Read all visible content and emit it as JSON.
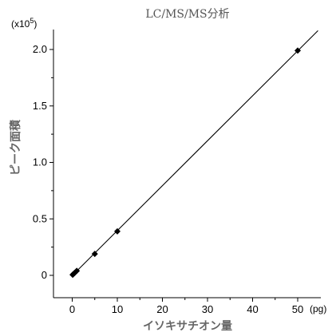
{
  "chart_data": {
    "type": "scatter",
    "title": "LC/MS/MS分析",
    "xlabel": "イソキサチオン量",
    "ylabel": "ピーク面積",
    "x_unit": "(pg)",
    "y_multiplier": "(x10",
    "y_multiplier_exp": "5",
    "y_multiplier_close": ")",
    "xlim": [
      -5,
      55
    ],
    "ylim": [
      -0.1,
      2.2
    ],
    "xticks": [
      0,
      10,
      20,
      30,
      40,
      50
    ],
    "xtick_labels": [
      "0",
      "10",
      "20",
      "30",
      "40",
      "50"
    ],
    "yticks": [
      0,
      0.5,
      1.0,
      1.5,
      2.0
    ],
    "ytick_labels": [
      "0",
      "0.5",
      "1.0",
      "1.5",
      "2.0"
    ],
    "series": [
      {
        "x": [
          0.1,
          0.2,
          0.5,
          1,
          5,
          10,
          50
        ],
        "y": [
          0.005,
          0.01,
          0.02,
          0.04,
          0.19,
          0.39,
          1.99
        ]
      }
    ],
    "fit_line": {
      "slope": 0.0398,
      "intercept": -0.002
    },
    "grid": false,
    "colors": {
      "marker": "#000000",
      "line": "#000000",
      "axis": "#000000"
    }
  }
}
